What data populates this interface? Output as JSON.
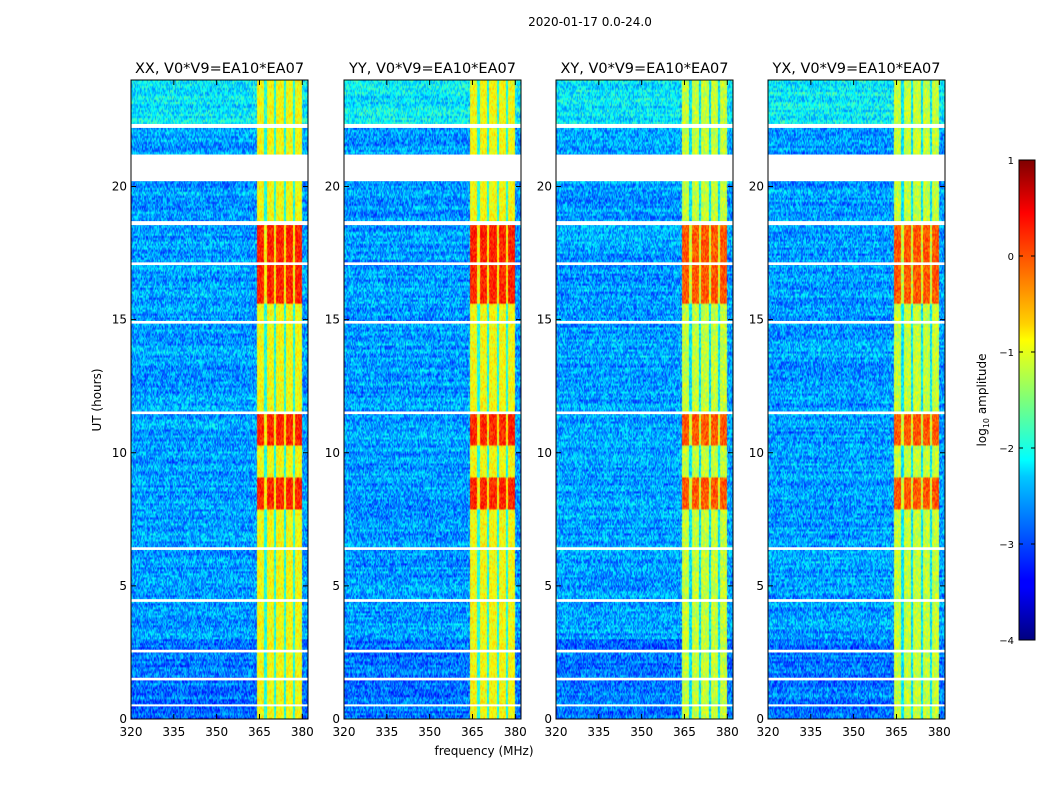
{
  "suptitle": "2020-01-17 0.0-24.0",
  "chart_data": {
    "type": "heatmap",
    "xlabel": "frequency (MHz)",
    "ylabel": "UT (hours)",
    "xlim": [
      320,
      382
    ],
    "ylim": [
      0,
      24
    ],
    "xticks": [
      320,
      335,
      350,
      365,
      380
    ],
    "yticks": [
      0,
      5,
      10,
      15,
      20
    ],
    "panels": [
      {
        "title": "XX, V0*V9=EA10*EA07"
      },
      {
        "title": "YY, V0*V9=EA10*EA07"
      },
      {
        "title": "XY, V0*V9=EA10*EA07"
      },
      {
        "title": "YX, V0*V9=EA10*EA07"
      }
    ],
    "colorbar": {
      "label": "log10 amplitude",
      "label_main": "log",
      "label_sub": "10",
      "label_rest": " amplitude",
      "range": [
        -4,
        1
      ],
      "ticks": [
        {
          "value": 1,
          "label": "1"
        },
        {
          "value": 0,
          "label": "0"
        },
        {
          "value": -1,
          "label": "−1"
        },
        {
          "value": -2,
          "label": "−2"
        },
        {
          "value": -3,
          "label": "−3"
        },
        {
          "value": -4,
          "label": "−4"
        }
      ],
      "colormap": "jet"
    },
    "strong_band_mhz": [
      364,
      380
    ],
    "very_strong_ut_ranges": [
      [
        7.9,
        9.1
      ],
      [
        10.3,
        11.5
      ],
      [
        15.6,
        18.6
      ]
    ],
    "flagged_ut_ranges": [
      [
        20.2,
        21.2
      ],
      [
        22.2,
        22.35
      ],
      [
        18.55,
        18.7
      ],
      [
        17.05,
        17.15
      ],
      [
        14.85,
        14.95
      ],
      [
        11.45,
        11.55
      ],
      [
        6.35,
        6.45
      ],
      [
        4.4,
        4.5
      ],
      [
        2.5,
        2.6
      ],
      [
        1.45,
        1.55
      ],
      [
        0.5,
        0.55
      ]
    ]
  }
}
